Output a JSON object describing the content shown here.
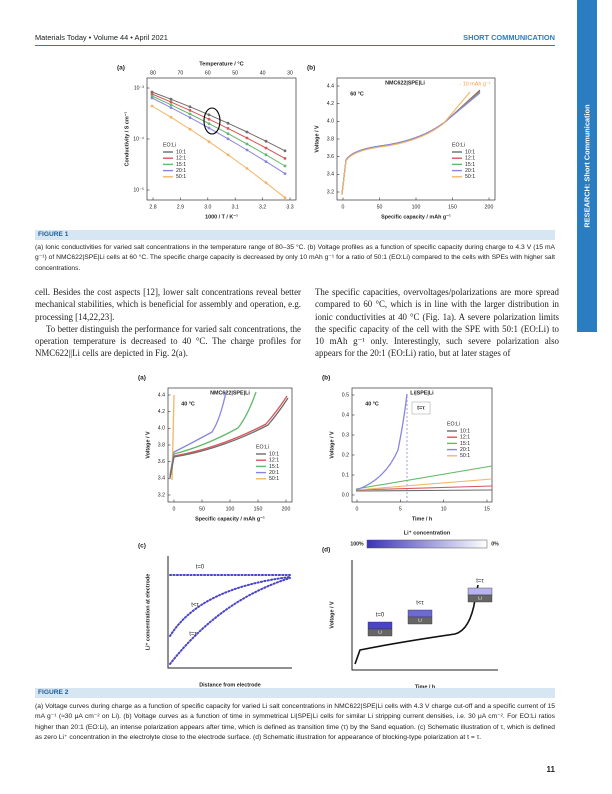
{
  "header": {
    "journal": "Materials Today • Volume 44 • April 2021",
    "section": "SHORT COMMUNICATION"
  },
  "side_tab": "RESEARCH: Short Communication",
  "figure1": {
    "label": "FIGURE 1",
    "caption": "(a) Ionic conductivities for varied salt concentrations in the temperature range of 80–35 °C. (b) Voltage profiles as a function of specific capacity during charge to 4.3 V (15 mA g⁻¹) of NMC622|SPE|Li cells at 60 °C. The specific charge capacity is decreased by only 10 mAh g⁻¹ for a ratio of 50:1 (EO:Li) compared to the cells with SPEs with higher salt concentrations.",
    "panels": [
      {
        "tag": "(a)",
        "top_label": "Temperature / °C",
        "top_ticks": [
          "80",
          "70",
          "60",
          "50",
          "40",
          "30"
        ],
        "x_ticks": [
          "2.8",
          "2.9",
          "3.0",
          "3.1",
          "3.2",
          "3.3"
        ],
        "x_label": "1000 / T / K⁻¹",
        "y_ticks": [
          "10⁻³",
          "10⁻⁴",
          "10⁻⁵"
        ],
        "y_label": "Conductivity / S cm⁻¹",
        "legend_title": "EO:Li",
        "legend": [
          {
            "name": "10:1",
            "color": "#6d6d6d"
          },
          {
            "name": "12:1",
            "color": "#d8565a"
          },
          {
            "name": "15:1",
            "color": "#63b96a"
          },
          {
            "name": "20:1",
            "color": "#8a86e0"
          },
          {
            "name": "50:1",
            "color": "#f4b565"
          }
        ]
      },
      {
        "tag": "(b)",
        "title": "NMC622|SPE|Li",
        "note": "- 10 mAh g⁻¹",
        "temperature": "60 °C",
        "x_ticks": [
          "0",
          "50",
          "100",
          "150",
          "200"
        ],
        "x_label": "Specific capacity / mAh g⁻¹",
        "y_ticks": [
          "4.4",
          "4.2",
          "4.0",
          "3.8",
          "3.6",
          "3.4",
          "3.2"
        ],
        "y_label": "Voltage / V",
        "legend_title": "EO:Li",
        "legend": [
          {
            "name": "10:1",
            "color": "#6d6d6d"
          },
          {
            "name": "12:1",
            "color": "#d8565a"
          },
          {
            "name": "15:1",
            "color": "#63b96a"
          },
          {
            "name": "20:1",
            "color": "#8a86e0"
          },
          {
            "name": "50:1",
            "color": "#f4b565"
          }
        ]
      }
    ]
  },
  "body": {
    "left": [
      "cell. Besides the cost aspects [12], lower salt concentrations reveal better mechanical stabilities, which is beneficial for assembly and operation, e.g. processing [14,22,23].",
      "To better distinguish the performance for varied salt concentrations, the operation temperature is decreased to 40 °C. The charge profiles for NMC622||Li cells are depicted in Fig. 2(a)."
    ],
    "right": [
      "The specific capacities, overvoltages/polarizations are more spread compared to 60 °C, which is in line with the larger distribution in ionic conductivities at 40 °C (Fig. 1a). A severe polarization limits the specific capacity of the cell with the SPE with 50:1 (EO:Li) to 10 mAh g⁻¹ only. Interestingly, such severe polarization also appears for the 20:1 (EO:Li) ratio, but at later stages of"
    ]
  },
  "figure2": {
    "label": "FIGURE 2",
    "caption": "(a) Voltage curves during charge as a function of specific capacity for varied Li salt concentrations in NMC622|SPE|Li cells with 4.3 V charge cut-off and a specific current of 15 mA g⁻¹ (≈30 μA cm⁻² on Li). (b) Voltage curves as a function of time in symmetrical Li|SPE|Li cells for similar Li stripping current densities, i.e. 30 μA cm⁻². For EO:Li ratios higher than 20:1 (EO:Li), an intense polarization appears after time, which is defined as transition time (τ) by the Sand equation. (c) Schematic illustration of τ, which is defined as zero Li⁺ concentration in the electrolyte close to the electrode surface. (d) Schematic illustration for appearance of blocking-type polarization at t = τ.",
    "panels": [
      {
        "tag": "(a)",
        "title": "NMC622|SPE|Li",
        "temperature": "40 °C",
        "x_ticks": [
          "0",
          "50",
          "100",
          "150",
          "200"
        ],
        "x_label": "Specific capacity / mAh g⁻¹",
        "y_ticks": [
          "4.4",
          "4.2",
          "4.0",
          "3.8",
          "3.6",
          "3.4",
          "3.2"
        ],
        "y_label": "Voltage / V",
        "legend_title": "EO:Li",
        "legend": [
          {
            "name": "10:1",
            "color": "#6d6d6d"
          },
          {
            "name": "12:1",
            "color": "#d8565a"
          },
          {
            "name": "15:1",
            "color": "#63b96a"
          },
          {
            "name": "20:1",
            "color": "#8a86e0"
          },
          {
            "name": "50:1",
            "color": "#f4b565"
          }
        ]
      },
      {
        "tag": "(b)",
        "title": "Li|SPE|Li",
        "temperature": "40 °C",
        "note": "t=τ",
        "x_ticks": [
          "0",
          "5",
          "10",
          "15"
        ],
        "x_label": "Time / h",
        "y_ticks": [
          "0.5",
          "0.4",
          "0.3",
          "0.2",
          "0.1",
          "0.0"
        ],
        "y_label": "Voltage / V",
        "legend_title": "EO:Li",
        "legend": [
          {
            "name": "10:1",
            "color": "#6d6d6d"
          },
          {
            "name": "12:1",
            "color": "#d8565a"
          },
          {
            "name": "15:1",
            "color": "#63b96a"
          },
          {
            "name": "20:1",
            "color": "#8a86e0"
          },
          {
            "name": "50:1",
            "color": "#f4b565"
          }
        ]
      },
      {
        "tag": "(c)",
        "x_label": "Distance from electrode",
        "y_label": "Li⁺ concentration at electrode",
        "curve_labels": [
          "t=0",
          "t<τ",
          "t=τ"
        ]
      },
      {
        "tag": "(d)",
        "bar_title": "Li⁺ concentration",
        "bar_left": "100%",
        "bar_right": "0%",
        "x_label": "Time / h",
        "y_label": "Voltage / V",
        "curve_labels": [
          "t=0",
          "t<τ",
          "t=τ"
        ],
        "electrode_labels": [
          "Li",
          "Li",
          "Li"
        ]
      }
    ]
  },
  "page_number": "11"
}
